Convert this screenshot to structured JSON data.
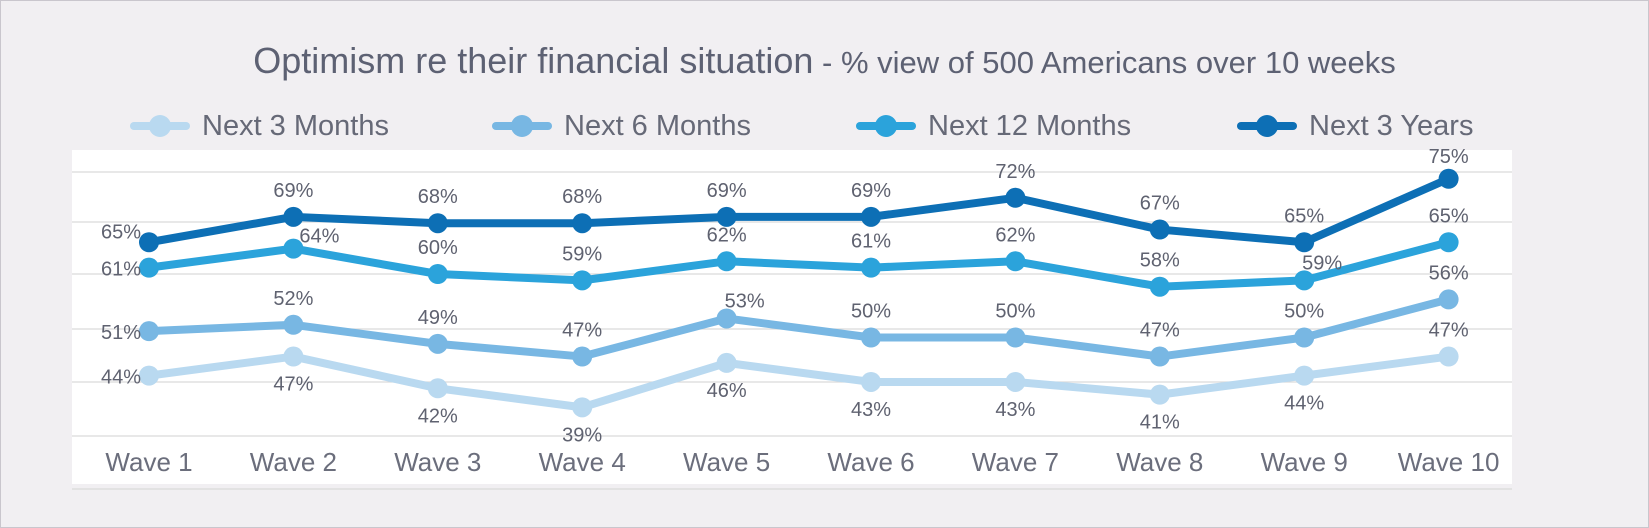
{
  "title": {
    "main": "Optimism re their financial situation",
    "sub": " - % view of 500 Americans over 10 weeks"
  },
  "chart_data": {
    "type": "line",
    "title": "Optimism re their financial situation - % view of 500 Americans over 10 weeks",
    "categories": [
      "Wave 1",
      "Wave 2",
      "Wave 3",
      "Wave 4",
      "Wave 5",
      "Wave 6",
      "Wave 7",
      "Wave 8",
      "Wave 9",
      "Wave 10"
    ],
    "unit": "%",
    "grid": true,
    "legend_position": "top",
    "series": [
      {
        "name": "Next 3 Months",
        "color": "#b9d9f0",
        "values": [
          44,
          47,
          42,
          39,
          46,
          43,
          43,
          41,
          44,
          47
        ]
      },
      {
        "name": "Next 6 Months",
        "color": "#78b7e3",
        "values": [
          51,
          52,
          49,
          47,
          53,
          50,
          50,
          47,
          50,
          56
        ]
      },
      {
        "name": "Next 12 Months",
        "color": "#2ba3db",
        "values": [
          61,
          64,
          60,
          59,
          62,
          61,
          62,
          58,
          59,
          65
        ]
      },
      {
        "name": "Next 3 Years",
        "color": "#0d6fb5",
        "values": [
          65,
          69,
          68,
          68,
          69,
          69,
          72,
          67,
          65,
          75
        ]
      }
    ]
  }
}
